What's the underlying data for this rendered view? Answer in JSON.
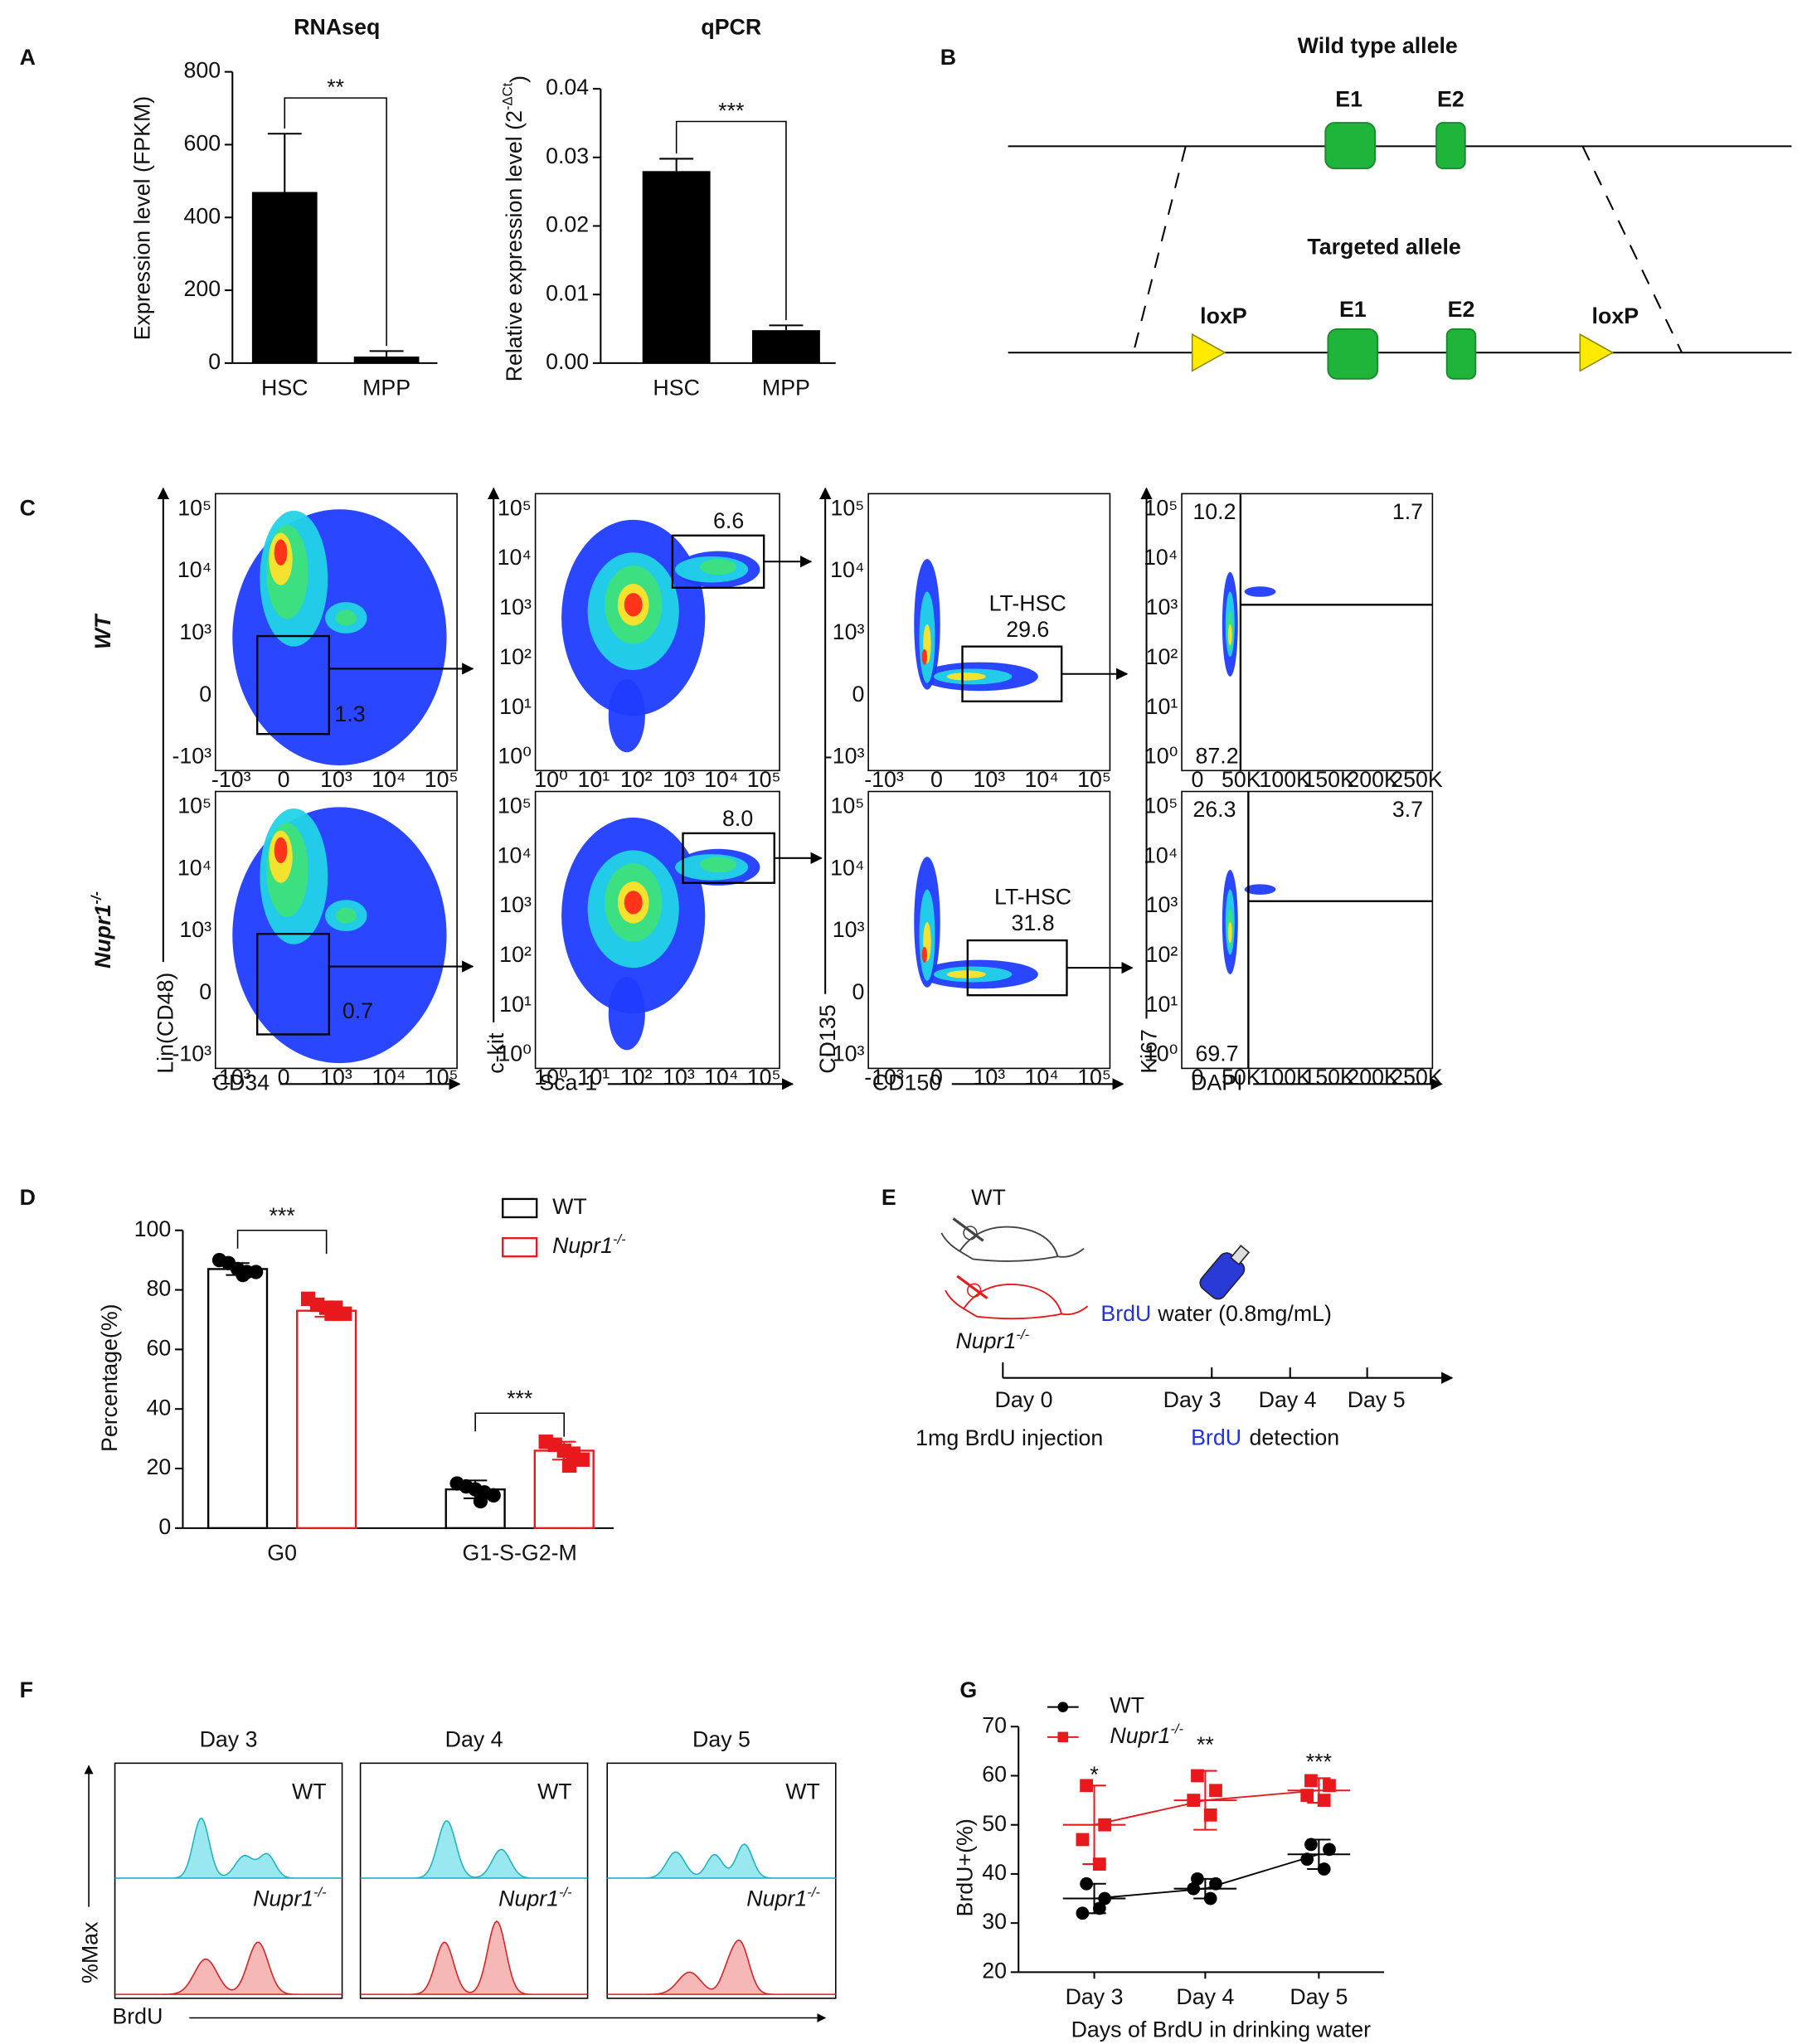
{
  "panel_labels": [
    "A",
    "B",
    "C",
    "D",
    "E",
    "F",
    "G"
  ],
  "chart_data": [
    {
      "type": "bar",
      "title": "RNAseq",
      "ylabel": "Expression level (FPKM)",
      "categories": [
        "HSC",
        "MPP"
      ],
      "values": [
        470,
        18
      ],
      "errors": [
        160,
        15
      ],
      "color": "#000000",
      "ylim": [
        0,
        800
      ],
      "yticks": [
        0,
        200,
        400,
        600,
        800
      ],
      "significance": "**"
    },
    {
      "type": "bar",
      "title": "qPCR",
      "ylabel": "Relative expression level (2",
      "ylabel_sup": "-ΔCt",
      "ylabel_end": ")",
      "categories": [
        "HSC",
        "MPP"
      ],
      "values": [
        0.028,
        0.0048
      ],
      "errors": [
        0.0018,
        0.0007
      ],
      "color": "#000000",
      "ylim": [
        0,
        0.04
      ],
      "yticks": [
        {
          "value": 0,
          "label": "0.00"
        },
        0.01,
        0.02,
        0.03,
        0.04
      ],
      "significance": "***"
    },
    {
      "type": "grouped_bar",
      "ylabel": "Percentage(%)",
      "categories": [
        "G0",
        "G1-S-G2-M"
      ],
      "series": [
        {
          "name": "WT",
          "color": "#000000",
          "marker": "circle",
          "values": [
            87,
            13
          ],
          "errors": [
            2,
            3
          ],
          "points": [
            [
              90,
              89,
              87,
              86,
              86,
              85
            ],
            [
              15,
              14,
              13,
              12,
              11,
              9
            ]
          ]
        },
        {
          "name": "Nupr1",
          "name_sup": "-/-",
          "color": "#e8191c",
          "marker": "square",
          "values": [
            73,
            26
          ],
          "errors": [
            2,
            3
          ],
          "points": [
            [
              77,
              75,
              74,
              74,
              72,
              72
            ],
            [
              29,
              28,
              26,
              25,
              23,
              21
            ]
          ]
        }
      ],
      "ylim": [
        0,
        100
      ],
      "yticks": [
        0,
        20,
        40,
        60,
        80,
        100
      ],
      "significance": [
        "***",
        "***"
      ]
    },
    {
      "type": "scatter",
      "ylabel": "BrdU+(%)",
      "xlabel": "Days of BrdU in drinking water",
      "categories": [
        "Day 3",
        "Day 4",
        "Day 5"
      ],
      "series": [
        {
          "name": "WT",
          "color": "#000000",
          "marker": "circle",
          "values": [
            35,
            37,
            44
          ],
          "errors": [
            3,
            2,
            3
          ],
          "points": [
            [
              38,
              35,
              32,
              33
            ],
            [
              39,
              38,
              37,
              35
            ],
            [
              46,
              45,
              43,
              41
            ]
          ]
        },
        {
          "name": "Nupr1",
          "name_sup": "-/-",
          "color": "#e8191c",
          "marker": "square",
          "values": [
            50,
            55,
            57
          ],
          "errors": [
            8,
            6,
            2.5
          ],
          "points": [
            [
              58,
              50,
              47,
              42
            ],
            [
              60,
              57,
              55,
              52
            ],
            [
              59,
              58,
              56,
              55
            ]
          ]
        }
      ],
      "ylim": [
        20,
        70
      ],
      "yticks": [
        20,
        30,
        40,
        50,
        60,
        70
      ],
      "significance": [
        "*",
        "**",
        "***"
      ]
    }
  ],
  "allele_diagram": {
    "wild_type_title": "Wild type allele",
    "wild_type_exons": [
      "E1",
      "E2"
    ],
    "targeted_title": "Targeted allele",
    "targeted_labels": [
      "loxP",
      "E1",
      "E2",
      "loxP"
    ]
  },
  "flow_cytometry": {
    "rows": [
      {
        "label": {
          "text": "WT"
        },
        "lin_cd34_gate": "1.3",
        "ckit_sca1_gate": "6.6",
        "lt_hsc_gate": {
          "name": "LT-HSC",
          "value": "29.6"
        },
        "ki67_dapi": {
          "upper_left": "10.2",
          "upper_right": "1.7",
          "lower_left": "87.2"
        }
      },
      {
        "label": {
          "text": "Nupr1",
          "sup": "-/-"
        },
        "lin_cd34_gate": "0.7",
        "ckit_sca1_gate": "8.0",
        "lt_hsc_gate": {
          "name": "LT-HSC",
          "value": "31.8"
        },
        "ki67_dapi": {
          "upper_left": "26.3",
          "upper_right": "3.7",
          "lower_left": "69.7"
        }
      }
    ],
    "y_axis_labels": [
      "Lin(CD48)",
      "c-kit",
      "CD135",
      "Ki67"
    ],
    "x_axis_labels": [
      "CD34",
      "Sca-1",
      "CD150",
      "DAPI"
    ],
    "tick_labels": {
      "log_signed": [
        "-10³",
        "0",
        "10³",
        "10⁴",
        "10⁵"
      ],
      "log": [
        "10⁰",
        "10¹",
        "10²",
        "10³",
        "10⁴",
        "10⁵"
      ],
      "linear": [
        "0",
        "50K",
        "100K",
        "150K",
        "200K",
        "250K"
      ]
    }
  },
  "brdu_timeline": {
    "mice": [
      {
        "text": "WT"
      },
      {
        "text": "Nupr1",
        "sup": "-/-"
      }
    ],
    "water": {
      "brdu": "BrdU",
      "rest": "water (0.8mg/mL)"
    },
    "days": [
      "Day 0",
      "Day 3",
      "Day 4",
      "Day 5"
    ],
    "injection": "1mg BrdU injection",
    "detection": {
      "brdu": "BrdU",
      "rest": "detection"
    }
  },
  "brdu_histograms": {
    "days": [
      "Day 3",
      "Day 4",
      "Day 5"
    ],
    "top_labels": [
      "WT",
      "WT",
      "WT"
    ],
    "bottom_labels": [
      {
        "text": "Nupr1",
        "sup": "-/-"
      },
      {
        "text": "Nupr1",
        "sup": "-/-"
      },
      {
        "text": "Nupr1",
        "sup": "-/-"
      }
    ],
    "y_axis": "%Max",
    "x_axis": "BrdU"
  }
}
